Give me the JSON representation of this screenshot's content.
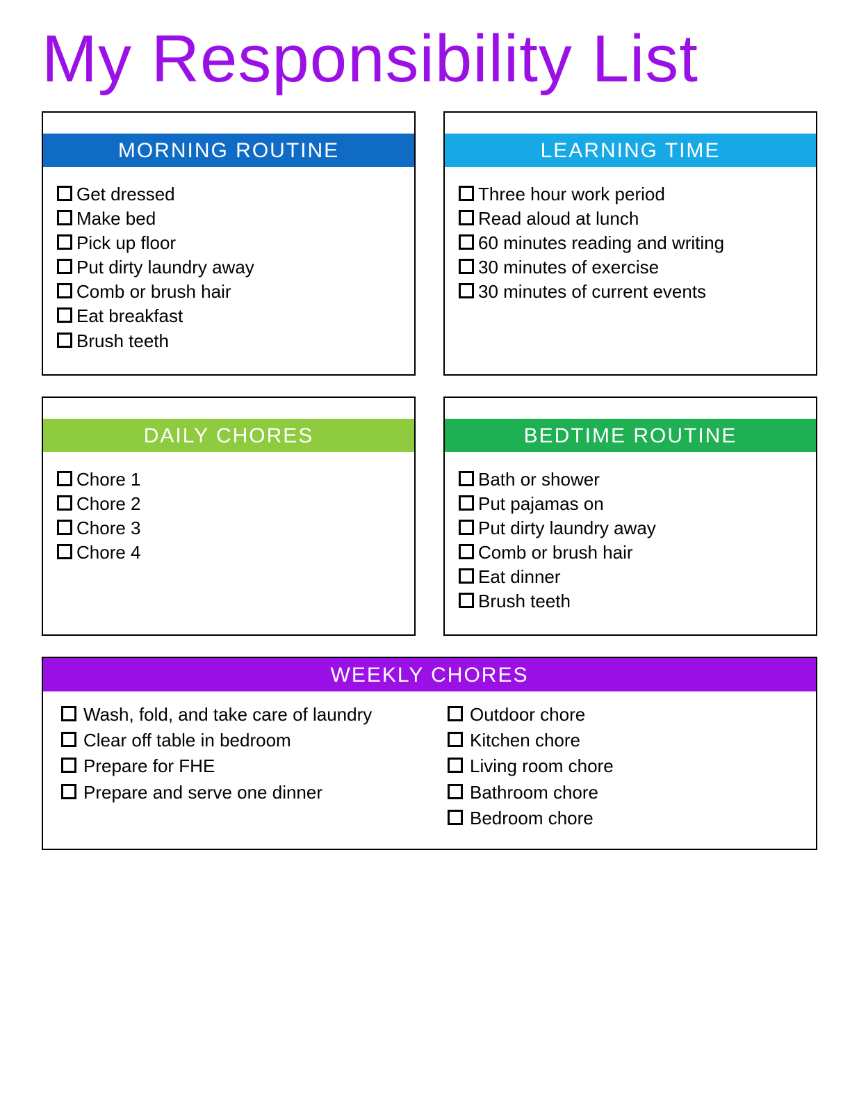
{
  "title": "My Responsibility List",
  "title_color": "#9b11e5",
  "title_fontsize": 96,
  "sections": [
    {
      "id": "morning",
      "header": "MORNING ROUTINE",
      "header_bg": "#0f6bc4",
      "items": [
        "Get dressed",
        "Make bed",
        "Pick up floor",
        "Put dirty laundry away",
        "Comb or brush hair",
        "Eat breakfast",
        "Brush teeth"
      ]
    },
    {
      "id": "learning",
      "header": "LEARNING TIME",
      "header_bg": "#17a9e6",
      "items": [
        "Three hour work period",
        "Read aloud at lunch",
        "60 minutes reading and writing",
        "30 minutes of exercise",
        "30 minutes of current events"
      ]
    },
    {
      "id": "daily",
      "header": "DAILY CHORES",
      "header_bg": "#8fcb3e",
      "items": [
        "Chore 1",
        "Chore 2",
        "Chore 3",
        "Chore 4"
      ]
    },
    {
      "id": "bedtime",
      "header": "BEDTIME ROUTINE",
      "header_bg": "#1fb053",
      "items": [
        "Bath or shower",
        "Put pajamas on",
        "Put dirty laundry away",
        "Comb or brush hair",
        "Eat dinner",
        "Brush teeth"
      ]
    }
  ],
  "weekly": {
    "id": "weekly",
    "header": "WEEKLY CHORES",
    "header_bg": "#9b11e5",
    "left_items": [
      "Wash, fold, and take care of laundry",
      "Clear off table in bedroom",
      "Prepare for FHE",
      "Prepare and serve one dinner"
    ],
    "right_items": [
      "Outdoor chore",
      "Kitchen chore",
      "Living room chore",
      "Bathroom chore",
      "Bedroom chore"
    ]
  },
  "style": {
    "page_bg": "#ffffff",
    "border_color": "#000000",
    "text_color": "#000000",
    "item_fontsize": 26,
    "header_fontsize": 30,
    "checkbox_size": 22,
    "checkbox_border": 3
  }
}
